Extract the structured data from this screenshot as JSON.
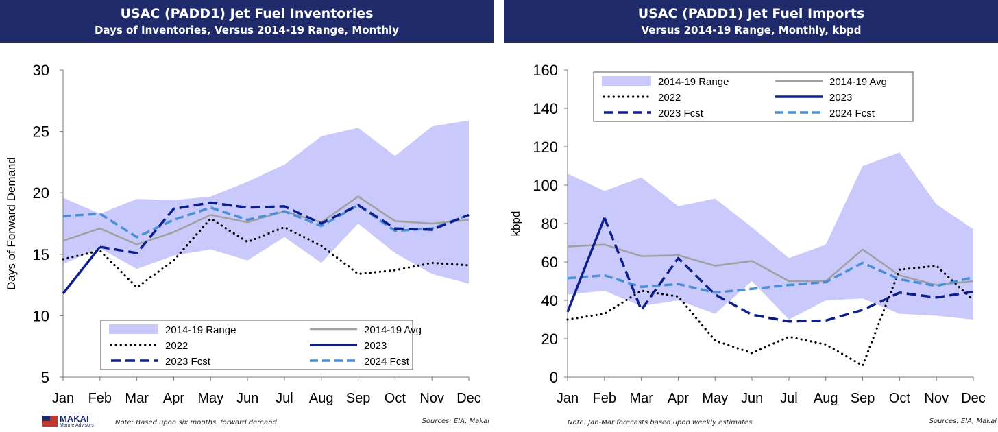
{
  "chart_data": [
    {
      "type": "line",
      "title": "USAC (PADD1) Jet Fuel Inventories",
      "subtitle": "Days of Inventories, Versus 2014-19 Range, Monthly",
      "ylabel": "Days of Forward Demand",
      "xlabel": "",
      "ylim": [
        5,
        30
      ],
      "yticks": [
        5,
        10,
        15,
        20,
        25,
        30
      ],
      "categories": [
        "Jan",
        "Feb",
        "Mar",
        "Apr",
        "May",
        "Jun",
        "Jul",
        "Aug",
        "Sep",
        "Oct",
        "Nov",
        "Dec"
      ],
      "range": {
        "name": "2014-19 Range",
        "low": [
          14.2,
          15.5,
          13.8,
          14.9,
          15.4,
          14.5,
          16.4,
          14.3,
          17.5,
          15.1,
          13.4,
          12.6
        ],
        "high": [
          19.6,
          18.3,
          19.5,
          19.4,
          19.7,
          20.9,
          22.3,
          24.6,
          25.3,
          23.0,
          25.4,
          25.9
        ]
      },
      "series": [
        {
          "name": "2014-19 Avg",
          "style": "avg",
          "values": [
            16.1,
            17.1,
            15.8,
            16.8,
            18.2,
            17.6,
            18.5,
            17.6,
            19.7,
            17.7,
            17.5,
            17.8
          ]
        },
        {
          "name": "2022",
          "style": "dotted",
          "values": [
            14.6,
            15.3,
            12.3,
            14.5,
            17.9,
            16.0,
            17.2,
            15.7,
            13.4,
            13.7,
            14.3,
            14.1
          ]
        },
        {
          "name": "2023",
          "style": "solid",
          "values": [
            11.8,
            15.6,
            null,
            null,
            null,
            null,
            null,
            null,
            null,
            null,
            null,
            null
          ]
        },
        {
          "name": "2023 Fcst",
          "style": "dash",
          "values": [
            null,
            15.6,
            15.1,
            18.7,
            19.2,
            18.8,
            18.9,
            17.5,
            19.0,
            17.1,
            17.0,
            18.2
          ]
        },
        {
          "name": "2024 Fcst",
          "style": "dashlight",
          "values": [
            18.1,
            18.3,
            16.4,
            17.8,
            18.8,
            17.8,
            18.5,
            17.3,
            19.0,
            16.9,
            17.1,
            18.2
          ]
        }
      ],
      "legend_position": "bottom-center",
      "note": "Note: Based upon six months' forward demand",
      "source": "Sources: EIA, Makai"
    },
    {
      "type": "line",
      "title": "USAC (PADD1) Jet Fuel Imports",
      "subtitle": "Versus 2014-19 Range, Monthly, kbpd",
      "ylabel": "kbpd",
      "xlabel": "",
      "ylim": [
        0,
        160
      ],
      "yticks": [
        0,
        20,
        40,
        60,
        80,
        100,
        120,
        140,
        160
      ],
      "categories": [
        "Jan",
        "Feb",
        "Mar",
        "Apr",
        "May",
        "Jun",
        "Jul",
        "Aug",
        "Sep",
        "Oct",
        "Nov",
        "Dec"
      ],
      "range": {
        "name": "2014-19 Range",
        "low": [
          43,
          45,
          37,
          40,
          33,
          50,
          30,
          40,
          41,
          33,
          32,
          30
        ],
        "high": [
          106,
          97,
          104,
          89,
          93,
          78,
          62,
          69,
          110,
          117,
          90,
          77
        ]
      },
      "series": [
        {
          "name": "2014-19 Avg",
          "style": "avg",
          "values": [
            68,
            69,
            63,
            63.5,
            58,
            60.5,
            50,
            50,
            66.5,
            53,
            48,
            50
          ]
        },
        {
          "name": "2022",
          "style": "dotted",
          "values": [
            30,
            33,
            45,
            42,
            19,
            12.5,
            21,
            17,
            6,
            56,
            58,
            40
          ]
        },
        {
          "name": "2023",
          "style": "solid",
          "values": [
            34,
            83,
            null,
            null,
            null,
            null,
            null,
            null,
            null,
            null,
            null,
            null
          ]
        },
        {
          "name": "2023 Fcst",
          "style": "dash",
          "values": [
            null,
            83,
            35,
            62,
            43,
            32.5,
            29,
            29.5,
            35,
            44,
            41.5,
            44.5
          ]
        },
        {
          "name": "2024 Fcst",
          "style": "dashlight",
          "values": [
            51.5,
            53,
            47,
            48.5,
            44,
            46,
            48,
            49.5,
            59.5,
            51,
            47.5,
            52
          ]
        }
      ],
      "legend_position": "top-left",
      "note": "Note: Jan-Mar forecasts based upon weekly estimates",
      "source": "Sources: EIA, Makai"
    }
  ],
  "colors": {
    "header_bg": "#1f2a6b",
    "range_fill": "#c9c9fb",
    "avg": "#a0a0a0",
    "y2022": "#000000",
    "y2023": "#0d1f8c",
    "fcst2023": "#0d1f8c",
    "fcst2024": "#4a8fd6"
  },
  "logo": {
    "name": "MAKAI",
    "tagline": "Marine Advisors"
  }
}
